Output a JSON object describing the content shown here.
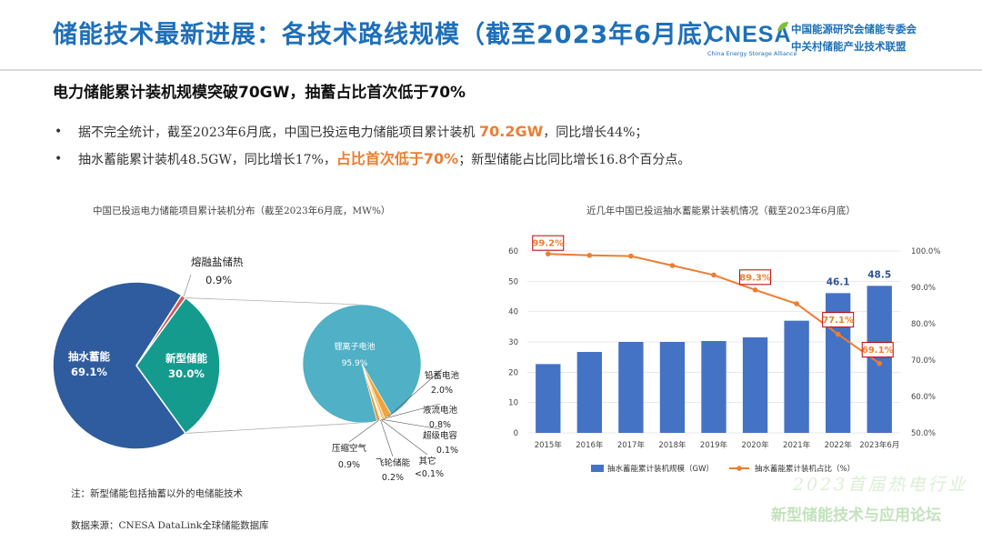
{
  "header": {
    "title": "储能技术最新进展：各技术路线规模（截至2023年6月底）",
    "logo": {
      "main": "CNESA",
      "sub": "China Energy Storage Alliance",
      "org_line1": "中国能源研究会储能专委会",
      "org_line2": "中关村储能产业技术联盟"
    }
  },
  "headline": "电力储能累计装机规模突破70GW，抽蓄占比首次低于70%",
  "bullets": [
    {
      "pre": "据不完全统计，截至2023年6月底，中国已投运电力储能项目累计装机 ",
      "hl": "70.2GW",
      "post": "，同比增长44%；"
    },
    {
      "pre": "抽水蓄能累计装机48.5GW，同比增长17%，",
      "hl": "占比首次低于70%",
      "post": "；新型储能占比同比增长16.8个百分点。"
    }
  ],
  "colors": {
    "title": "#1e6fb8",
    "highlight": "#ed7d31",
    "bar": "#4472c4",
    "line": "#ed7d31",
    "pie_pumped": "#2e5c9e",
    "pie_new": "#159b8e",
    "pie_molten": "#d35454",
    "li_ion": "#4fb0c6"
  },
  "chart_data": [
    {
      "type": "pie",
      "title": "中国已投运电力储能项目累计装机分布（截至2023年6月底，MW%）",
      "slices": [
        {
          "label": "抽水蓄能",
          "value": 69.1,
          "display": "69.1%"
        },
        {
          "label": "新型储能",
          "value": 30.0,
          "display": "30.0%"
        },
        {
          "label": "熔融盐储热",
          "value": 0.9,
          "display": "0.9%"
        }
      ],
      "sub_pie": {
        "source": "新型储能",
        "slices": [
          {
            "label": "锂离子电池",
            "value": 95.9,
            "display": "95.9%"
          },
          {
            "label": "铅蓄电池",
            "value": 2.0,
            "display": "2.0%"
          },
          {
            "label": "液流电池",
            "value": 0.8,
            "display": "0.8%"
          },
          {
            "label": "超级电容",
            "value": 0.1,
            "display": "0.1%"
          },
          {
            "label": "其它",
            "value": 0.05,
            "display": "<0.1%"
          },
          {
            "label": "飞轮储能",
            "value": 0.2,
            "display": "0.2%"
          },
          {
            "label": "压缩空气",
            "value": 0.9,
            "display": "0.9%"
          }
        ]
      }
    },
    {
      "type": "bar",
      "title": "近几年中国已投运抽水蓄能累计装机情况（截至2023年6月底）",
      "categories": [
        "2015年",
        "2016年",
        "2017年",
        "2018年",
        "2019年",
        "2020年",
        "2021年",
        "2022年",
        "2023年6月"
      ],
      "series": [
        {
          "name": "抽水蓄能累计装机规模（GW）",
          "type": "bar",
          "axis": "left",
          "values": [
            22.7,
            26.7,
            30.0,
            30.0,
            30.3,
            31.5,
            37.0,
            46.1,
            48.5
          ]
        },
        {
          "name": "抽水蓄能累计装机占比（%）",
          "type": "line",
          "axis": "right",
          "values": [
            99.2,
            98.8,
            98.6,
            96.0,
            93.4,
            89.3,
            85.5,
            77.1,
            69.1
          ]
        }
      ],
      "bar_labels": [
        {
          "index": 7,
          "text": "46.1"
        },
        {
          "index": 8,
          "text": "48.5"
        }
      ],
      "line_callouts": [
        {
          "index": 0,
          "text": "99.2%"
        },
        {
          "index": 5,
          "text": "89.3%"
        },
        {
          "index": 7,
          "text": "77.1%"
        },
        {
          "index": 8,
          "text": "69.1%"
        }
      ],
      "y_left": {
        "min": 0,
        "max": 60,
        "ticks": [
          "0",
          "10",
          "20",
          "30",
          "40",
          "50",
          "60"
        ]
      },
      "y_right": {
        "min": 50,
        "max": 100,
        "ticks": [
          "50.0%",
          "60.0%",
          "70.0%",
          "80.0%",
          "90.0%",
          "100.0%"
        ]
      }
    }
  ],
  "notes": {
    "footnote": "注：新型储能包括抽蓄以外的电储能技术",
    "source": "数据来源：CNESA DataLink全球储能数据库"
  },
  "watermark": {
    "event_line1": "2023首届热电行业",
    "event_line2": "新型储能技术与应用论坛"
  }
}
